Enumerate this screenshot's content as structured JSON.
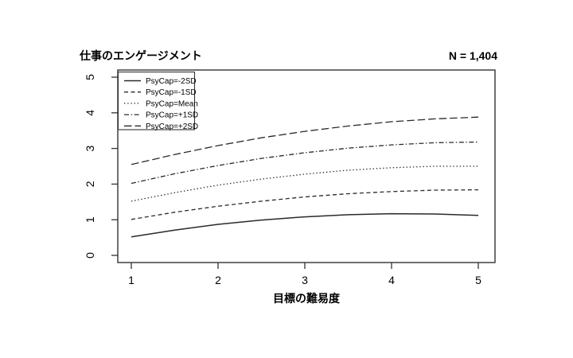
{
  "chart_data": {
    "type": "line",
    "title": "仕事のエンゲージメント",
    "title_position": "top-left",
    "annotation": "N = 1,404",
    "annotation_position": "top-right",
    "xlabel": "目標の難易度",
    "ylabel": "",
    "xlim": [
      1,
      5
    ],
    "ylim": [
      0,
      5
    ],
    "x_ticks": [
      "1",
      "2",
      "3",
      "4",
      "5"
    ],
    "y_ticks": [
      "0",
      "1",
      "2",
      "3",
      "4",
      "5"
    ],
    "grid": false,
    "legend_position": "top-left",
    "line_color": "#2a2a2a",
    "x": [
      1,
      1.5,
      2,
      2.5,
      3,
      3.5,
      4,
      4.5,
      5
    ],
    "series": [
      {
        "name": "PsyCap=-2SD",
        "dash": "solid",
        "values": [
          0.52,
          0.71,
          0.87,
          0.99,
          1.08,
          1.14,
          1.17,
          1.16,
          1.12
        ]
      },
      {
        "name": "PsyCap=-1SD",
        "dash": "dashed",
        "values": [
          1.01,
          1.21,
          1.38,
          1.52,
          1.64,
          1.73,
          1.79,
          1.83,
          1.84
        ]
      },
      {
        "name": "PsyCap=Mean",
        "dash": "dotted",
        "values": [
          1.52,
          1.76,
          1.97,
          2.14,
          2.28,
          2.39,
          2.46,
          2.5,
          2.5
        ]
      },
      {
        "name": "PsyCap=+1SD",
        "dash": "dashdot",
        "values": [
          2.02,
          2.29,
          2.52,
          2.72,
          2.88,
          3.01,
          3.1,
          3.16,
          3.18
        ]
      },
      {
        "name": "PsyCap=+2SD",
        "dash": "longdash",
        "values": [
          2.55,
          2.83,
          3.08,
          3.3,
          3.48,
          3.63,
          3.75,
          3.83,
          3.88
        ]
      }
    ]
  }
}
